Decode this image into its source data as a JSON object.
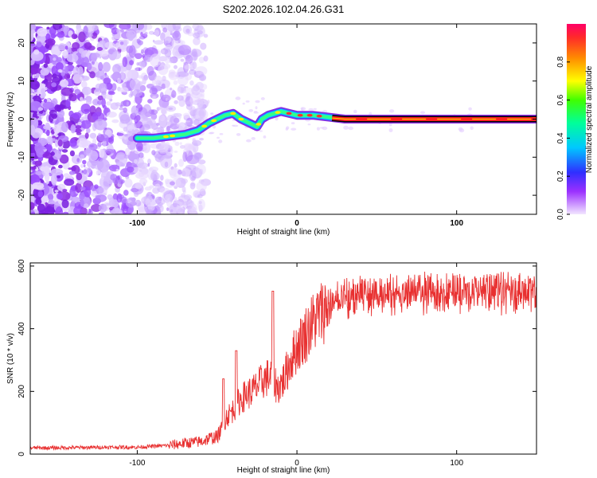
{
  "chart_data": [
    {
      "type": "heatmap",
      "title": "S202.2026.102.04.26.G31",
      "xlabel": "Height of straight line (km)",
      "ylabel": "Frequency (Hz)",
      "xlim": [
        -167,
        150
      ],
      "ylim": [
        -25,
        25
      ],
      "xticks": [
        -100,
        0,
        100
      ],
      "yticks": [
        -20,
        -10,
        0,
        10,
        20
      ],
      "colorbar": {
        "label": "Normalized spectral amplitude",
        "range": [
          0,
          1
        ],
        "ticks": [
          "0.0",
          "0.2",
          "0.4",
          "0.6",
          "0.8"
        ]
      },
      "ridge": {
        "x": [
          -100,
          -90,
          -80,
          -70,
          -62,
          -55,
          -50,
          -45,
          -40,
          -35,
          -30,
          -25,
          -22,
          -18,
          -10,
          -5,
          0,
          10,
          20,
          30,
          60,
          100,
          150
        ],
        "y": [
          -5,
          -5,
          -4.5,
          -4,
          -3,
          -1,
          0,
          1,
          1.5,
          0,
          -1,
          -2,
          0,
          1,
          2,
          1.5,
          1,
          1,
          0.5,
          0,
          0,
          0,
          0
        ]
      },
      "noise_region_x": [
        -167,
        -83
      ]
    },
    {
      "type": "line",
      "xlabel": "Height of straight line (km)",
      "ylabel": "SNR (10 * v/v)",
      "xlim": [
        -167,
        150
      ],
      "ylim": [
        0,
        610
      ],
      "xticks": [
        -100,
        0,
        100
      ],
      "yticks": [
        0,
        200,
        400,
        600
      ],
      "series": [
        {
          "name": "SNR",
          "x": [
            -167,
            -150,
            -120,
            -100,
            -80,
            -70,
            -60,
            -55,
            -50,
            -46,
            -44,
            -40,
            -36,
            -32,
            -28,
            -24,
            -20,
            -16,
            -12,
            -8,
            -4,
            0,
            5,
            10,
            15,
            20,
            25,
            30,
            40,
            50,
            60,
            70,
            80,
            90,
            100,
            110,
            120,
            130,
            140,
            150
          ],
          "y": [
            20,
            20,
            22,
            22,
            28,
            35,
            40,
            50,
            55,
            90,
            120,
            140,
            170,
            190,
            200,
            220,
            240,
            250,
            210,
            240,
            300,
            340,
            380,
            420,
            450,
            480,
            500,
            510,
            520,
            525,
            525,
            530,
            530,
            525,
            530,
            525,
            525,
            530,
            525,
            525
          ],
          "spikes": [
            {
              "x": -46,
              "y": 240
            },
            {
              "x": -38,
              "y": 330
            },
            {
              "x": -15,
              "y": 520
            }
          ]
        }
      ]
    }
  ]
}
